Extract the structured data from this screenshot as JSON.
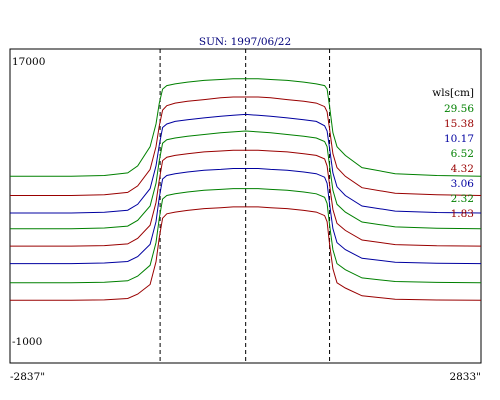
{
  "chart_data": {
    "type": "line",
    "title": "SUN: 1997/06/22",
    "ymax_label": "17000",
    "ymin_label": "-1000",
    "xmin_label": "-2837\"",
    "xmax_label": "2833\"",
    "xlim": [
      -2837,
      2833
    ],
    "ylim": [
      -1000,
      17000
    ],
    "legend_title": "wls[cm]",
    "legend_position": "top-right",
    "grid": false,
    "vlines": [
      -1030,
      0,
      1010
    ],
    "series": [
      {
        "name": "29.56",
        "color": "#008000",
        "offset": 9700
      },
      {
        "name": "15.38",
        "color": "#990000",
        "offset": 8600
      },
      {
        "name": "10.17",
        "color": "#0000a0",
        "offset": 7600
      },
      {
        "name": "6.52",
        "color": "#008000",
        "offset": 6700
      },
      {
        "name": "4.32",
        "color": "#990000",
        "offset": 5700
      },
      {
        "name": "3.06",
        "color": "#0000a0",
        "offset": 4700
      },
      {
        "name": "2.32",
        "color": "#008000",
        "offset": 3600
      },
      {
        "name": "1.83",
        "color": "#990000",
        "offset": 2600
      }
    ],
    "x": [
      -2837,
      -2100,
      -1700,
      -1420,
      -1300,
      -1150,
      -1080,
      -1040,
      -1000,
      -950,
      -850,
      -700,
      -500,
      -300,
      -150,
      0,
      150,
      300,
      500,
      700,
      850,
      950,
      980,
      1010,
      1050,
      1100,
      1200,
      1400,
      1800,
      2300,
      2833
    ],
    "profiles": [
      [
        0,
        0,
        50,
        200,
        600,
        1700,
        3000,
        4200,
        5000,
        5200,
        5300,
        5400,
        5500,
        5550,
        5600,
        5600,
        5600,
        5550,
        5500,
        5400,
        5300,
        5200,
        5000,
        4000,
        2500,
        1700,
        1200,
        500,
        150,
        50,
        0
      ],
      [
        0,
        0,
        50,
        180,
        550,
        1500,
        2800,
        4000,
        4900,
        5150,
        5300,
        5400,
        5500,
        5600,
        5650,
        5650,
        5650,
        5600,
        5500,
        5400,
        5300,
        5100,
        4800,
        3800,
        2400,
        1600,
        1100,
        450,
        130,
        40,
        0
      ],
      [
        0,
        0,
        40,
        160,
        500,
        1400,
        2700,
        3900,
        4900,
        5100,
        5250,
        5350,
        5450,
        5550,
        5600,
        5650,
        5600,
        5550,
        5450,
        5350,
        5250,
        5000,
        4700,
        3700,
        2300,
        1500,
        1000,
        400,
        110,
        30,
        0
      ],
      [
        0,
        0,
        40,
        150,
        480,
        1300,
        2600,
        3900,
        4900,
        5100,
        5200,
        5300,
        5400,
        5500,
        5550,
        5600,
        5550,
        5500,
        5400,
        5300,
        5200,
        5000,
        4700,
        3600,
        2200,
        1400,
        950,
        380,
        100,
        30,
        0
      ],
      [
        0,
        0,
        30,
        130,
        450,
        1200,
        2500,
        3800,
        4900,
        5100,
        5200,
        5300,
        5400,
        5450,
        5500,
        5500,
        5500,
        5450,
        5400,
        5300,
        5200,
        5000,
        4600,
        3500,
        2100,
        1300,
        900,
        350,
        90,
        20,
        0
      ],
      [
        0,
        0,
        30,
        120,
        400,
        1100,
        2400,
        3800,
        4850,
        5050,
        5150,
        5250,
        5350,
        5400,
        5450,
        5450,
        5450,
        5400,
        5350,
        5250,
        5150,
        4950,
        4600,
        3400,
        2000,
        1200,
        800,
        300,
        80,
        20,
        0
      ],
      [
        0,
        0,
        30,
        110,
        380,
        1000,
        2300,
        3700,
        4800,
        5000,
        5100,
        5200,
        5300,
        5350,
        5400,
        5400,
        5400,
        5350,
        5300,
        5200,
        5100,
        4900,
        4550,
        3300,
        1900,
        1100,
        750,
        280,
        70,
        20,
        0
      ],
      [
        0,
        0,
        20,
        100,
        350,
        900,
        2200,
        3600,
        4700,
        4950,
        5050,
        5150,
        5250,
        5300,
        5350,
        5350,
        5350,
        5300,
        5250,
        5150,
        5050,
        4850,
        4500,
        3200,
        1800,
        1000,
        700,
        250,
        60,
        10,
        0
      ]
    ]
  }
}
